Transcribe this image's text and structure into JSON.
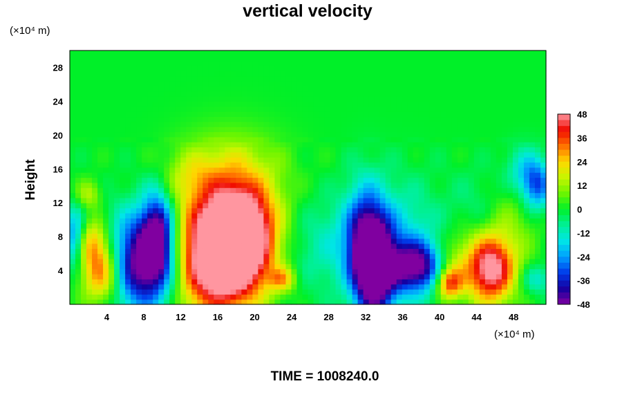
{
  "chart_data": {
    "type": "heatmap",
    "title": "vertical velocity",
    "ylabel": "Height",
    "x_unit": "(×10⁴ m)",
    "y_unit": "(×10⁴ m)",
    "footer": "TIME = 1008240.0",
    "xlim": [
      0,
      51.5
    ],
    "ylim": [
      0,
      30
    ],
    "x_ticks": [
      4,
      8,
      12,
      16,
      20,
      24,
      28,
      32,
      36,
      40,
      44,
      48
    ],
    "y_ticks": [
      4,
      8,
      12,
      16,
      20,
      24,
      28
    ],
    "colorbar": {
      "min": -48,
      "max": 48,
      "ticks": [
        48,
        36,
        24,
        12,
        0,
        -12,
        -24,
        -36,
        -48
      ]
    },
    "features": [
      {
        "x": 3.5,
        "y": 3.8,
        "rx": 1.6,
        "ry": 2.6,
        "value": 38
      },
      {
        "x": 2.5,
        "y": 7.5,
        "rx": 1.3,
        "ry": 2.0,
        "value": 22
      },
      {
        "x": 2.0,
        "y": 13.0,
        "rx": 1.0,
        "ry": 1.2,
        "value": 14
      },
      {
        "x": 8.0,
        "y": 5.0,
        "rx": 2.8,
        "ry": 4.0,
        "value": -55
      },
      {
        "x": 9.5,
        "y": 8.5,
        "rx": 1.2,
        "ry": 3.5,
        "value": -40
      },
      {
        "x": 15.5,
        "y": 5.0,
        "rx": 3.5,
        "ry": 4.5,
        "value": 52
      },
      {
        "x": 18.5,
        "y": 8.0,
        "rx": 2.5,
        "ry": 4.0,
        "value": 50
      },
      {
        "x": 17.5,
        "y": 11.0,
        "rx": 4.0,
        "ry": 5.0,
        "value": 22
      },
      {
        "x": 17.0,
        "y": 17.0,
        "rx": 4.0,
        "ry": 2.5,
        "value": 6
      },
      {
        "x": 28.5,
        "y": 7.0,
        "rx": 5.0,
        "ry": 4.0,
        "value": -12
      },
      {
        "x": 33.0,
        "y": 4.0,
        "rx": 1.5,
        "ry": 4.0,
        "value": -52
      },
      {
        "x": 32.0,
        "y": 8.0,
        "rx": 1.5,
        "ry": 4.5,
        "value": -30
      },
      {
        "x": 37.5,
        "y": 4.5,
        "rx": 2.0,
        "ry": 2.0,
        "value": -42
      },
      {
        "x": 36.0,
        "y": 7.0,
        "rx": 3.0,
        "ry": 5.0,
        "value": -14
      },
      {
        "x": 41.0,
        "y": 2.5,
        "rx": 1.0,
        "ry": 1.3,
        "value": 34
      },
      {
        "x": 41.5,
        "y": 5.0,
        "rx": 1.6,
        "ry": 2.5,
        "value": 14
      },
      {
        "x": 45.5,
        "y": 4.2,
        "rx": 1.8,
        "ry": 2.8,
        "value": 52
      },
      {
        "x": 48.0,
        "y": 10.0,
        "rx": 2.0,
        "ry": 4.0,
        "value": 8
      },
      {
        "x": 50.5,
        "y": 14.0,
        "rx": 1.2,
        "ry": 2.0,
        "value": -30
      },
      {
        "x": 49.0,
        "y": 16.0,
        "rx": 1.5,
        "ry": 2.0,
        "value": -14
      },
      {
        "x": 0.5,
        "y": 8.0,
        "rx": 0.8,
        "ry": 2.5,
        "value": -26
      },
      {
        "x": 23.0,
        "y": 3.0,
        "rx": 1.0,
        "ry": 1.0,
        "value": 22
      },
      {
        "x": 13.0,
        "y": 15.0,
        "rx": 2.0,
        "ry": 2.0,
        "value": 9
      },
      {
        "x": 44.0,
        "y": 12.0,
        "rx": 2.0,
        "ry": 3.0,
        "value": -5
      },
      {
        "x": 50.5,
        "y": 3.0,
        "rx": 1.2,
        "ry": 1.2,
        "value": -14
      }
    ]
  }
}
